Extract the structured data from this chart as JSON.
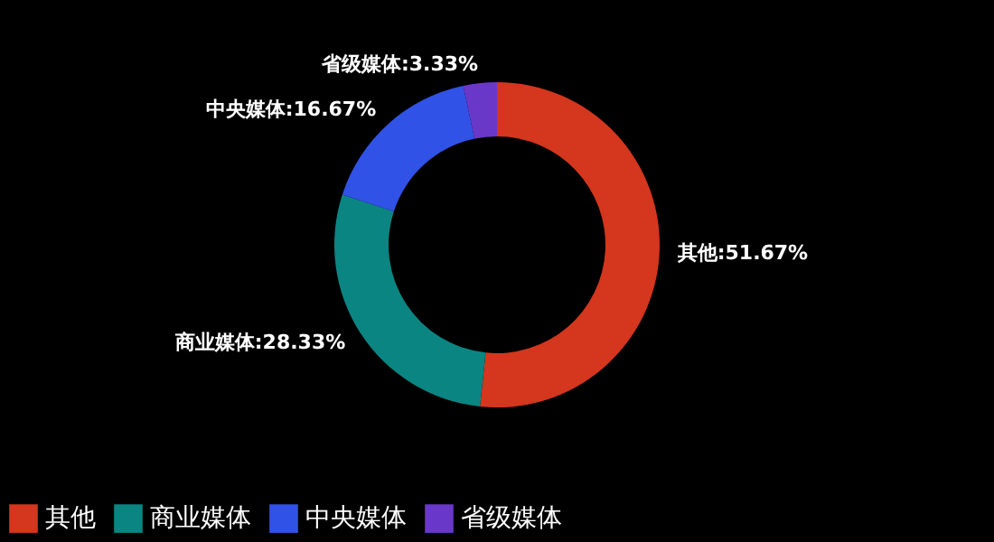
{
  "chart_data": {
    "type": "donut",
    "categories": [
      "其他",
      "商业媒体",
      "中央媒体",
      "省级媒体"
    ],
    "values": [
      51.67,
      28.33,
      16.67,
      3.33
    ],
    "colors": [
      "#d4361e",
      "#0b8582",
      "#3152e6",
      "#6a38c8"
    ],
    "value_labels": [
      "其他:51.67%",
      "商业媒体:28.33%",
      "中央媒体:16.67%",
      "省级媒体:3.33%"
    ],
    "legend": "bottom"
  }
}
